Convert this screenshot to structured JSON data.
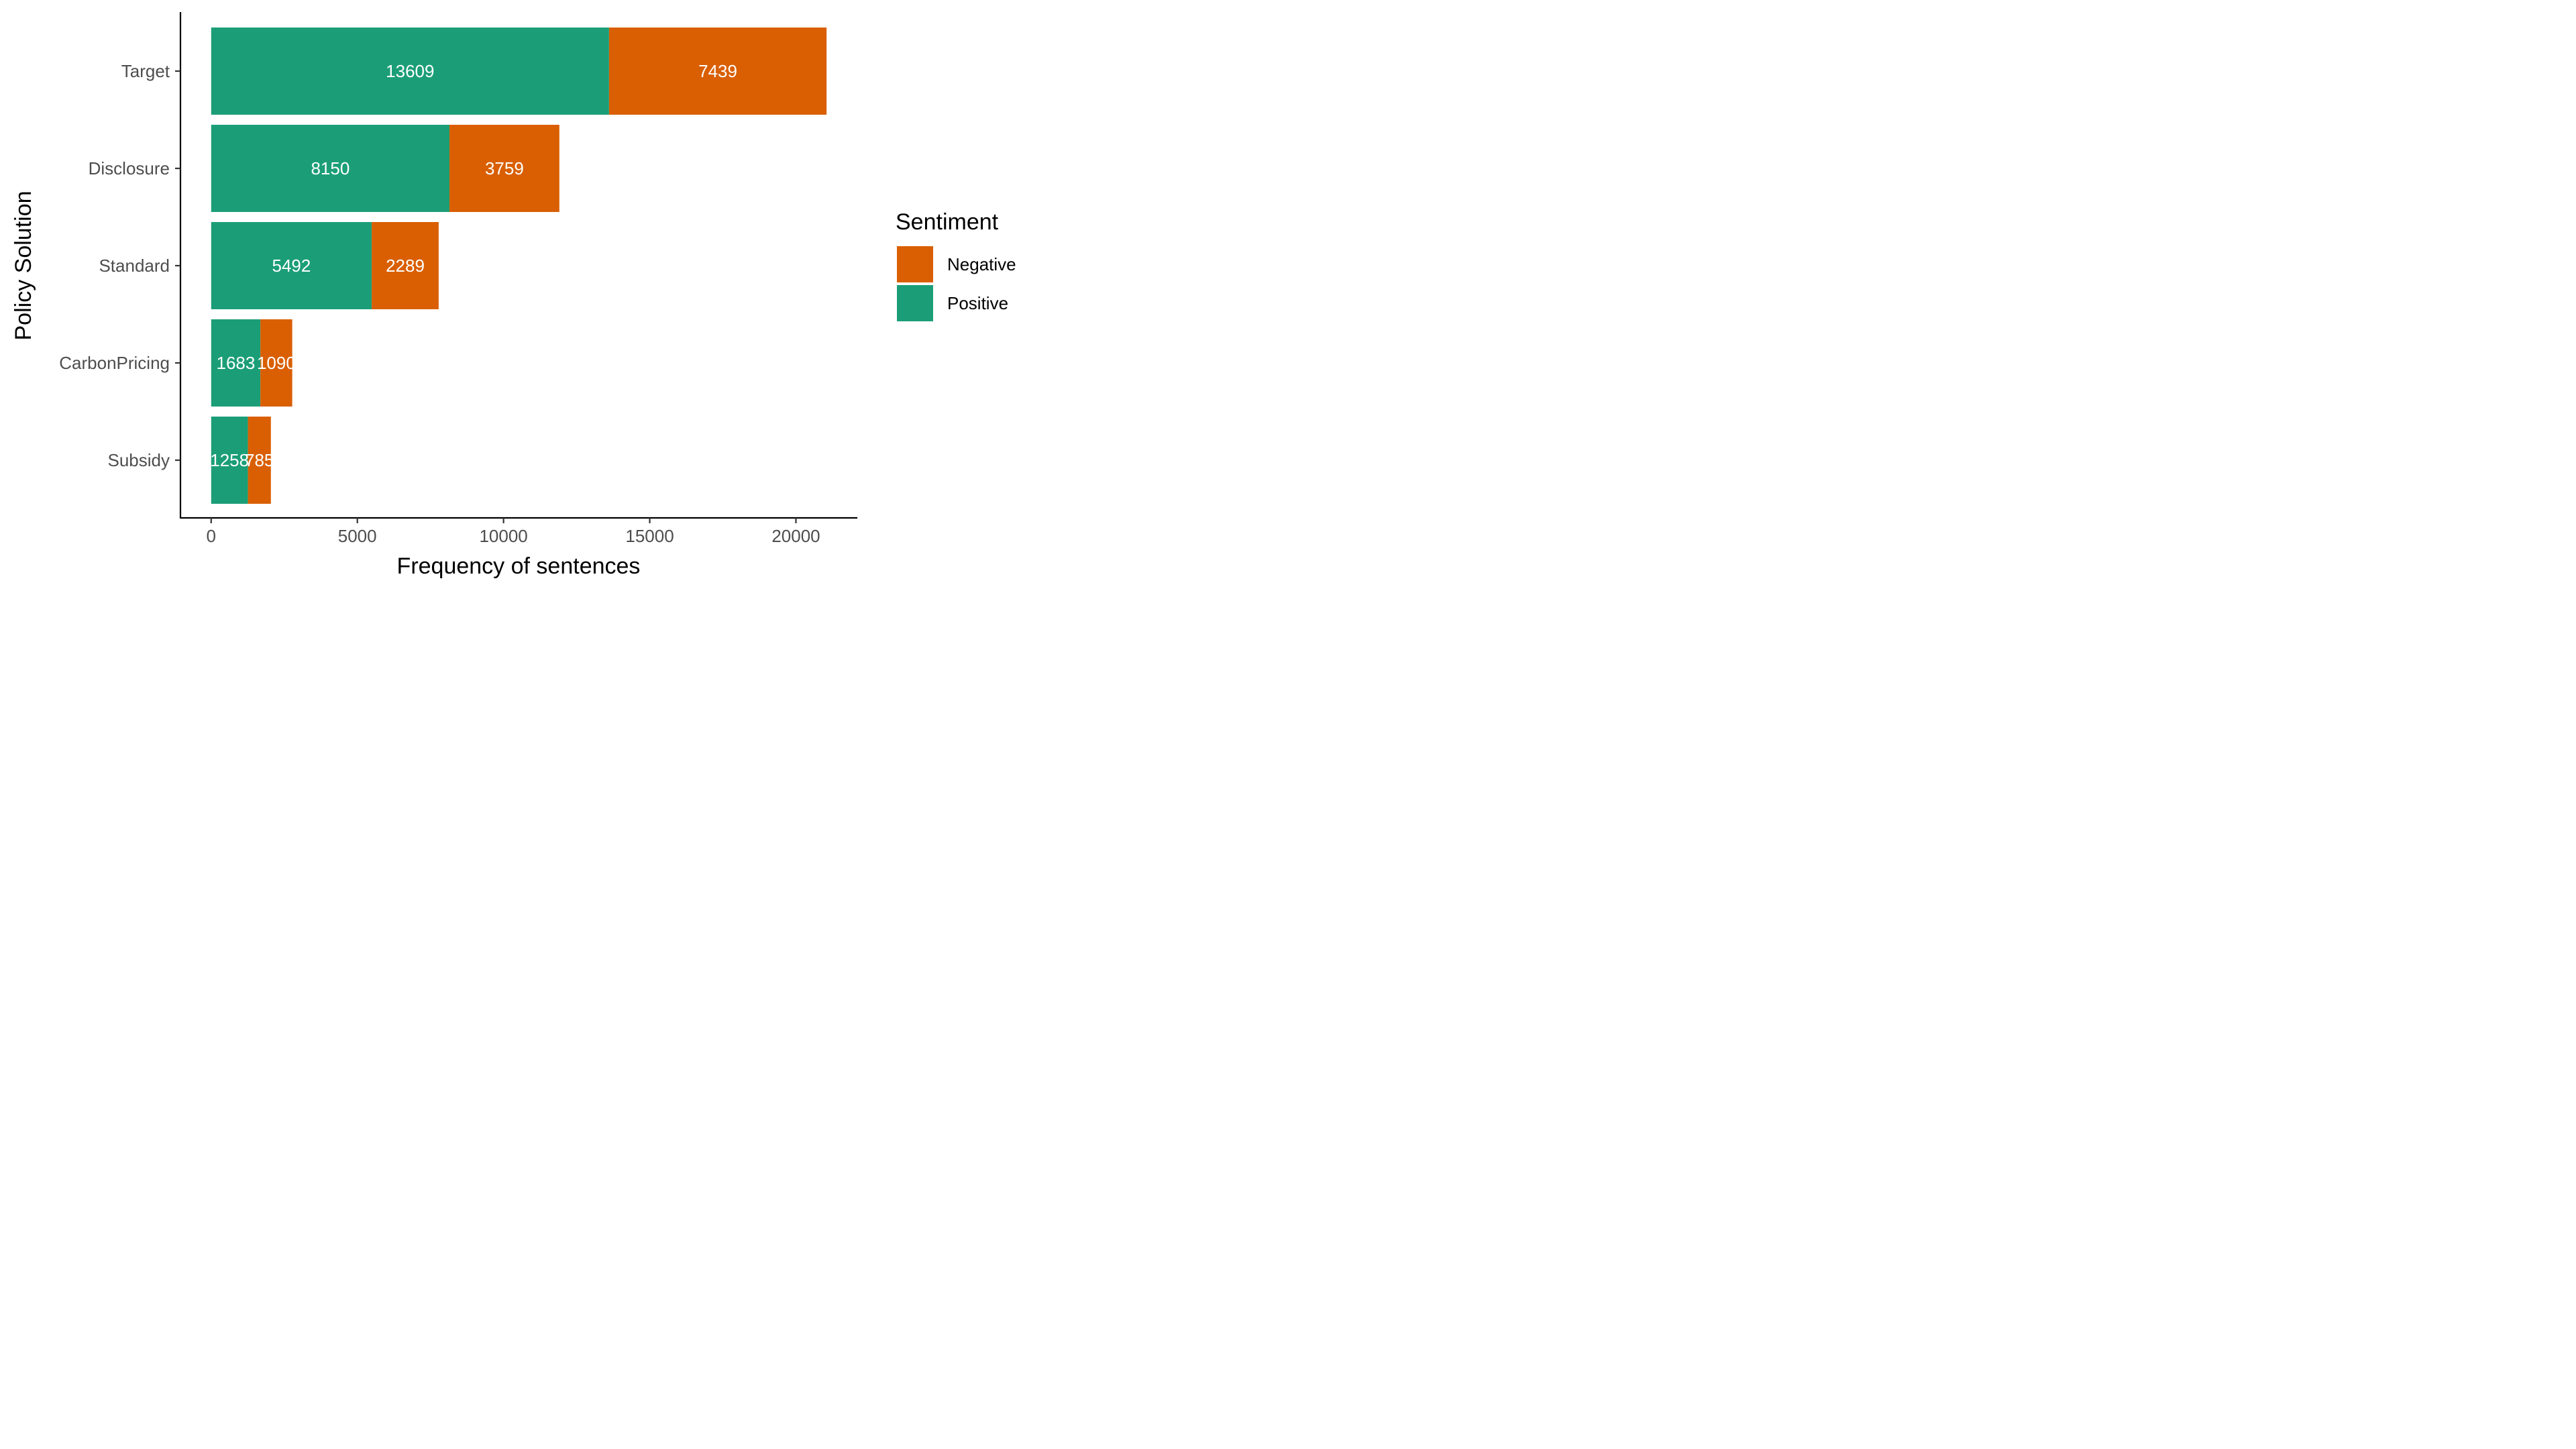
{
  "chart_data": {
    "type": "bar",
    "orientation": "horizontal",
    "stacked": true,
    "categories": [
      "Target",
      "Disclosure",
      "Standard",
      "CarbonPricing",
      "Subsidy"
    ],
    "series": [
      {
        "name": "Positive",
        "values": [
          13609,
          8150,
          5492,
          1683,
          1258
        ],
        "color": "#1b9e77"
      },
      {
        "name": "Negative",
        "values": [
          7439,
          3759,
          2289,
          1090,
          785
        ],
        "color": "#d95f02"
      }
    ],
    "xlabel": "Frequency of sentences",
    "ylabel": "Policy Solution",
    "xlim": [
      -1050,
      22100
    ],
    "xticks": [
      0,
      5000,
      10000,
      15000,
      20000
    ],
    "grid": false,
    "legend": {
      "title": "Sentiment",
      "placement": "right",
      "entries": [
        "Negative",
        "Positive"
      ]
    }
  }
}
